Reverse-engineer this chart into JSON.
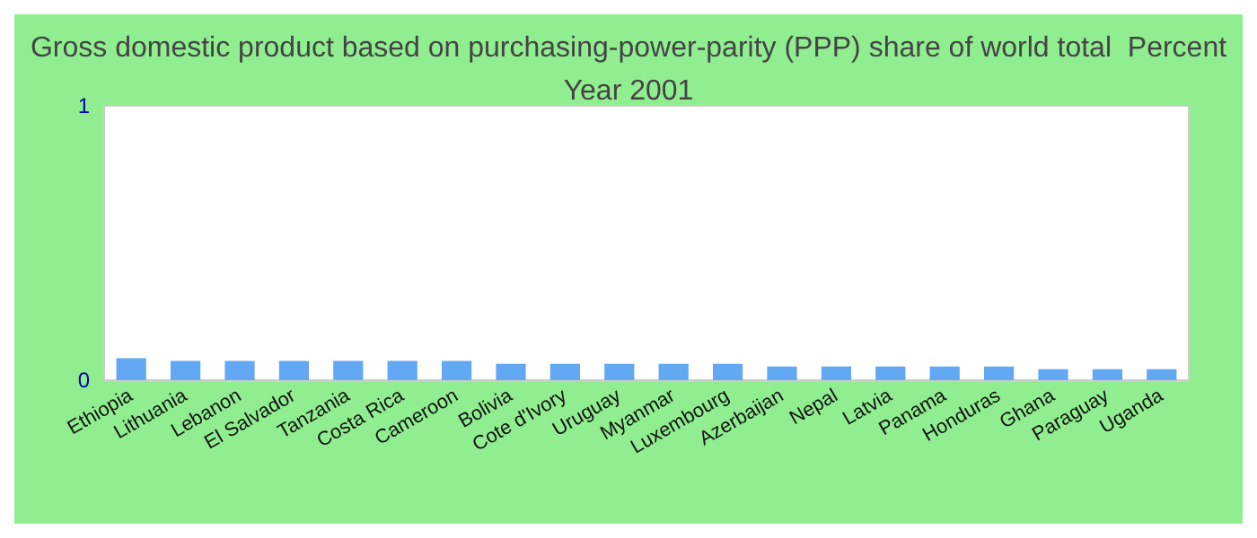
{
  "chart_data": {
    "type": "bar",
    "title": "Gross domestic product based on purchasing-power-parity (PPP) share of world total  Percent",
    "subtitle": "Year 2001",
    "categories": [
      "Ethiopia",
      "Lithuania",
      "Lebanon",
      "El Salvador",
      "Tanzania",
      "Costa Rica",
      "Cameroon",
      "Bolivia",
      "Cote d'Ivory",
      "Uruguay",
      "Myanmar",
      "Luxembourg",
      "Azerbaijan",
      "Nepal",
      "Latvia",
      "Panama",
      "Honduras",
      "Ghana",
      "Paraguay",
      "Uganda"
    ],
    "values": [
      0.08,
      0.07,
      0.07,
      0.07,
      0.07,
      0.07,
      0.07,
      0.06,
      0.06,
      0.06,
      0.06,
      0.06,
      0.05,
      0.05,
      0.05,
      0.05,
      0.05,
      0.04,
      0.04,
      0.04
    ],
    "color": "#63a8f2",
    "ylim": [
      0,
      1
    ],
    "yticks": [
      0,
      1
    ],
    "grid": false
  }
}
